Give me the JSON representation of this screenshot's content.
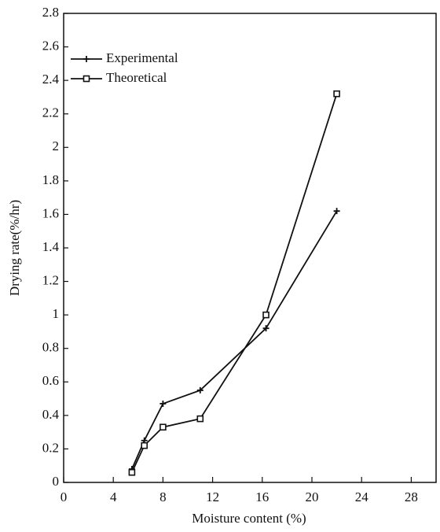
{
  "chart_data": {
    "type": "line",
    "xlabel": "Moisture content (%)",
    "ylabel": "Drying rate(%/hr)",
    "x": [
      5.5,
      6.5,
      8,
      11,
      16.3,
      22
    ],
    "series": [
      {
        "name": "Experimental",
        "color": "#111111",
        "marker": "plus",
        "values": [
          0.08,
          0.25,
          0.47,
          0.55,
          0.92,
          1.62
        ]
      },
      {
        "name": "Theoretical",
        "color": "#111111",
        "marker": "square",
        "values": [
          0.06,
          0.22,
          0.33,
          0.38,
          1.0,
          2.32
        ]
      }
    ],
    "xlim": [
      0,
      30
    ],
    "xticks": [
      0,
      4,
      8,
      12,
      16,
      20,
      24,
      28
    ],
    "ylim": [
      0,
      2.8
    ],
    "yticks": [
      0,
      0.2,
      0.4,
      0.6,
      0.8,
      1,
      1.2,
      1.4,
      1.6,
      1.8,
      2,
      2.2,
      2.4,
      2.6,
      2.8
    ],
    "grid": false,
    "legend": "upper left"
  }
}
